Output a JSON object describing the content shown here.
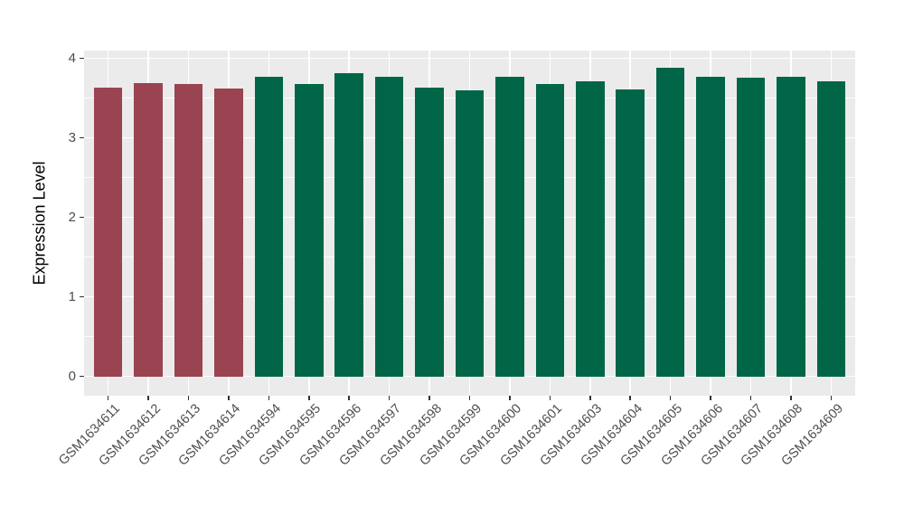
{
  "figure": {
    "background": "#FFFFFF",
    "panel_bg": "#EBEBEB",
    "grid_color": "#FFFFFF",
    "axis_text_color": "#4D4D4D",
    "axis_title_color": "#000000",
    "tick_color": "#333333"
  },
  "chart_data": {
    "type": "bar",
    "title": "",
    "xlabel": "",
    "ylabel": "Expression Level",
    "ylim": [
      -0.244,
      4.095
    ],
    "yticks": [
      0,
      1,
      2,
      3,
      4
    ],
    "minor_ticks": [
      0.5,
      1.5,
      2.5,
      3.5
    ],
    "grid": "horizontal major+minor white, vertical major at category centers, ggplot gray panel",
    "legend": "none",
    "categories": [
      "GSM1634611",
      "GSM1634612",
      "GSM1634613",
      "GSM1634614",
      "GSM1634594",
      "GSM1634595",
      "GSM1634596",
      "GSM1634597",
      "GSM1634598",
      "GSM1634599",
      "GSM1634600",
      "GSM1634601",
      "GSM1634603",
      "GSM1634604",
      "GSM1634605",
      "GSM1634606",
      "GSM1634607",
      "GSM1634608",
      "GSM1634609"
    ],
    "values": [
      3.63,
      3.69,
      3.67,
      3.62,
      3.76,
      3.67,
      3.81,
      3.76,
      3.63,
      3.59,
      3.77,
      3.67,
      3.71,
      3.61,
      3.88,
      3.76,
      3.75,
      3.77,
      3.71
    ],
    "groups": [
      "A",
      "A",
      "A",
      "A",
      "B",
      "B",
      "B",
      "B",
      "B",
      "B",
      "B",
      "B",
      "B",
      "B",
      "B",
      "B",
      "B",
      "B",
      "B"
    ],
    "group_colors": {
      "A": "#9A4351",
      "B": "#006647"
    }
  }
}
